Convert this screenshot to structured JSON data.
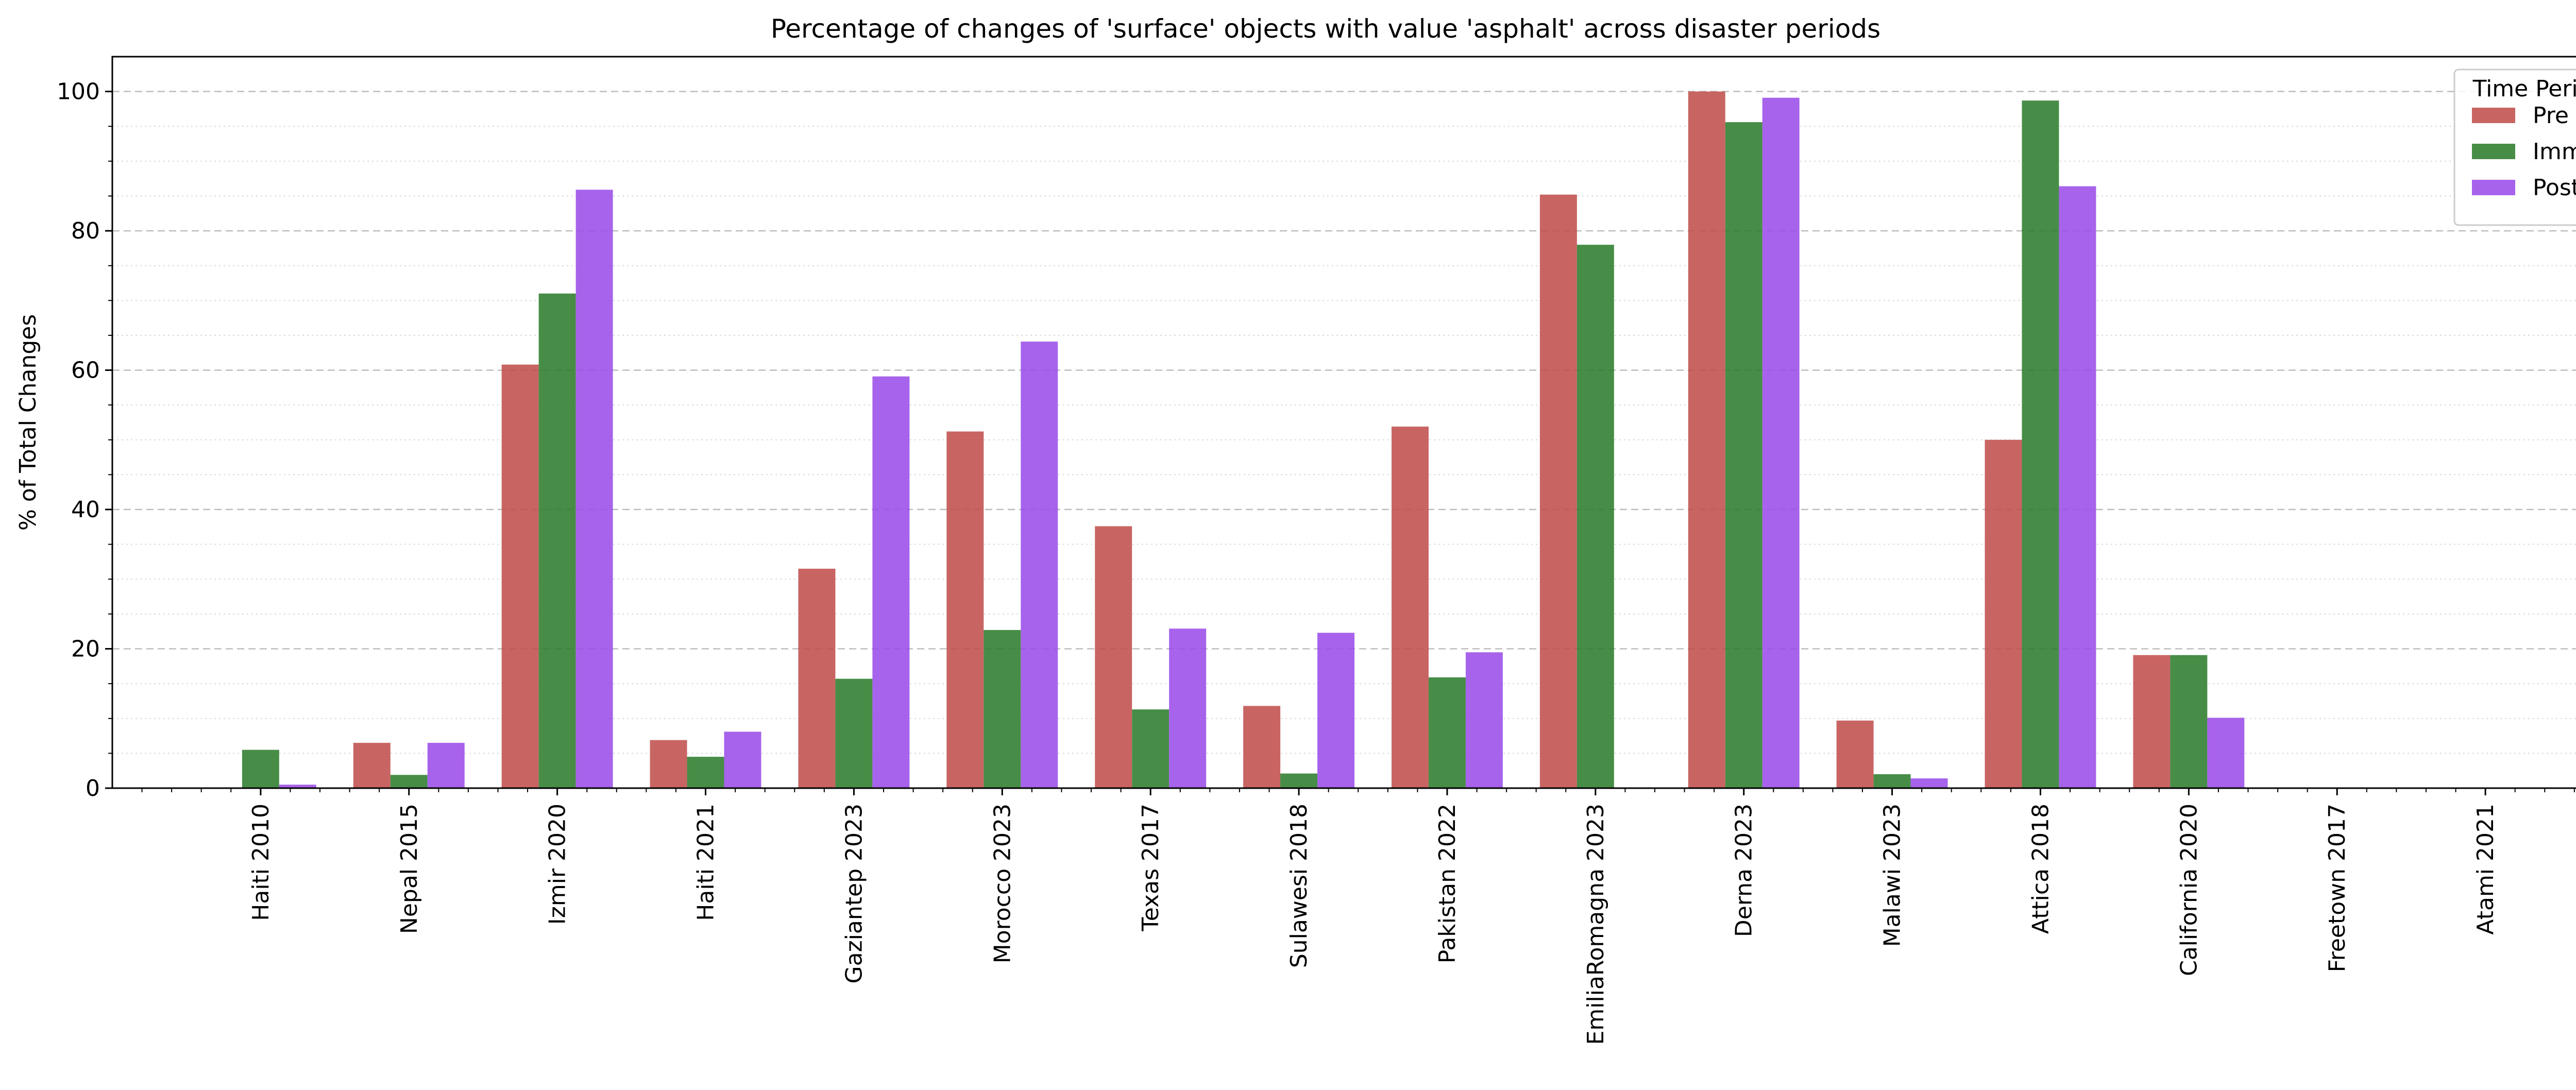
{
  "chart_data": {
    "type": "bar",
    "title": "Percentage of changes of 'surface' objects with value 'asphalt' across disaster periods",
    "xlabel": "",
    "ylabel": "% of Total Changes",
    "ylim": [
      0,
      105
    ],
    "yticks": [
      0,
      20,
      40,
      60,
      80,
      100
    ],
    "grid": true,
    "legend": {
      "title": "Time Period",
      "placement": "top-right"
    },
    "categories": [
      "Haiti 2010",
      "Nepal 2015",
      "Izmir 2020",
      "Haiti 2021",
      "Gaziantep 2023",
      "Morocco 2023",
      "Texas 2017",
      "Sulawesi 2018",
      "Pakistan 2022",
      "EmiliaRomagna 2023",
      "Derna 2023",
      "Malawi 2023",
      "Attica 2018",
      "California 2020",
      "Freetown 2017",
      "Atami 2021"
    ],
    "series": [
      {
        "name": "Pre",
        "color": "#c0504d",
        "values": [
          0,
          6.5,
          60.8,
          6.9,
          31.5,
          51.2,
          37.6,
          11.8,
          51.9,
          85.2,
          100,
          9.7,
          50,
          19.1,
          0,
          0
        ]
      },
      {
        "name": "Imm",
        "color": "#2e7d2e",
        "values": [
          5.5,
          1.9,
          71.0,
          4.5,
          15.7,
          22.7,
          11.3,
          2.1,
          15.9,
          78.0,
          95.6,
          2.0,
          98.7,
          19.1,
          0,
          0
        ]
      },
      {
        "name": "Post",
        "color": "#9b4de8",
        "values": [
          0.5,
          6.5,
          85.9,
          8.1,
          59.1,
          64.1,
          22.9,
          22.3,
          19.5,
          0,
          99.1,
          1.4,
          86.4,
          10.1,
          0,
          0
        ]
      }
    ]
  }
}
